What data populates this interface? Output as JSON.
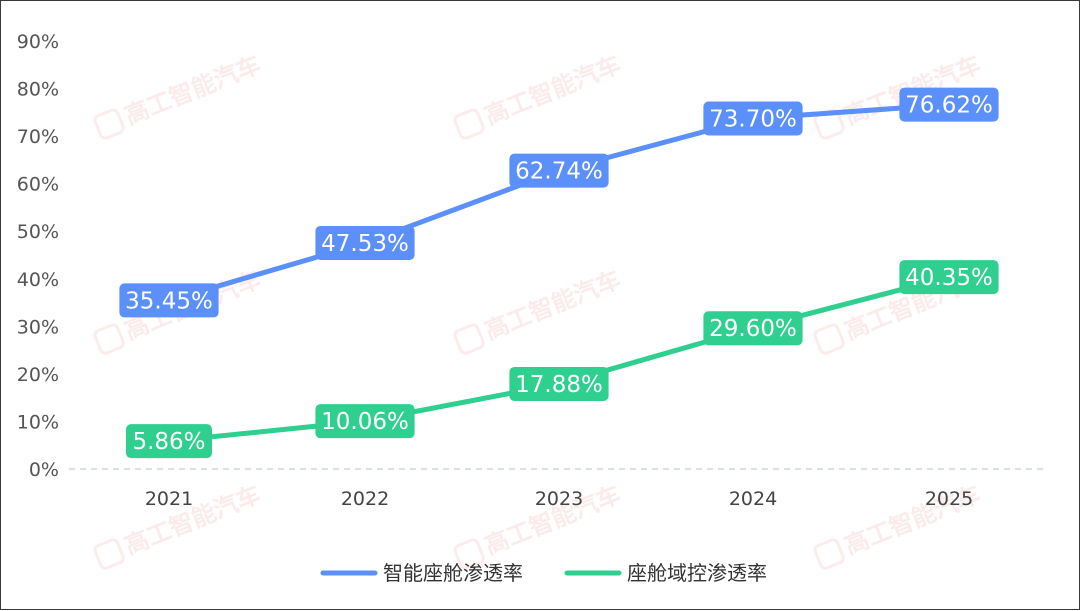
{
  "chart_data": {
    "type": "line",
    "categories": [
      "2021",
      "2022",
      "2023",
      "2024",
      "2025"
    ],
    "series": [
      {
        "name": "智能座舱渗透率",
        "values": [
          35.45,
          47.53,
          62.74,
          73.7,
          76.62
        ],
        "labels": [
          "35.45%",
          "47.53%",
          "62.74%",
          "73.70%",
          "76.62%"
        ],
        "color": "#5b8ff9"
      },
      {
        "name": "座舱域控渗透率",
        "values": [
          5.86,
          10.06,
          17.88,
          29.6,
          40.35
        ],
        "labels": [
          "5.86%",
          "10.06%",
          "17.88%",
          "29.60%",
          "40.35%"
        ],
        "color": "#2fcf8f"
      }
    ],
    "yticks": [
      "0%",
      "10%",
      "20%",
      "30%",
      "40%",
      "50%",
      "60%",
      "70%",
      "80%",
      "90%"
    ],
    "ylim": [
      0,
      90
    ],
    "grid": false,
    "legend_position": "bottom-center"
  },
  "watermark": {
    "text": "高工智能汽车",
    "color": "#e86a6a"
  }
}
